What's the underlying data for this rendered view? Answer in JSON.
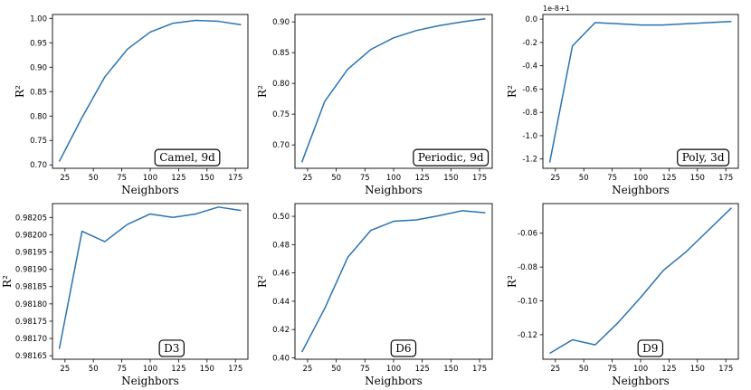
{
  "chart_data": [
    {
      "type": "line",
      "annotation": "Camel, 9d",
      "xlabel": "Neighbors",
      "ylabel": "R²",
      "xlim": [
        14,
        186
      ],
      "ylim": [
        0.693,
        1.008
      ],
      "xticks": [
        25,
        50,
        75,
        100,
        125,
        150,
        175
      ],
      "yticks": [
        0.7,
        0.75,
        0.8,
        0.85,
        0.9,
        0.95,
        1.0
      ],
      "ytick_labels": [
        "0.70",
        "0.75",
        "0.80",
        "0.85",
        "0.90",
        "0.95",
        "1.00"
      ],
      "offset_text": "",
      "x": [
        20,
        40,
        60,
        80,
        100,
        120,
        140,
        160,
        180
      ],
      "y": [
        0.707,
        0.797,
        0.88,
        0.937,
        0.972,
        0.99,
        0.996,
        0.994,
        0.987
      ]
    },
    {
      "type": "line",
      "annotation": "Periodic, 9d",
      "xlabel": "Neighbors",
      "ylabel": "R²",
      "xlim": [
        14,
        186
      ],
      "ylim": [
        0.662,
        0.912
      ],
      "xticks": [
        25,
        50,
        75,
        100,
        125,
        150,
        175
      ],
      "yticks": [
        0.7,
        0.75,
        0.8,
        0.85,
        0.9
      ],
      "ytick_labels": [
        "0.70",
        "0.75",
        "0.80",
        "0.85",
        "0.90"
      ],
      "offset_text": "",
      "x": [
        20,
        40,
        60,
        80,
        100,
        120,
        140,
        160,
        180
      ],
      "y": [
        0.672,
        0.771,
        0.823,
        0.855,
        0.874,
        0.886,
        0.894,
        0.9,
        0.905
      ]
    },
    {
      "type": "line",
      "annotation": "Poly, 3d",
      "xlabel": "Neighbors",
      "ylabel": "R²",
      "xlim": [
        14,
        186
      ],
      "ylim": [
        -1.28,
        0.04
      ],
      "xticks": [
        25,
        50,
        75,
        100,
        125,
        150,
        175
      ],
      "yticks": [
        0.0,
        -0.2,
        -0.4,
        -0.6,
        -0.8,
        -1.0,
        -1.2
      ],
      "ytick_labels": [
        "0.0",
        "-0.2",
        "-0.4",
        "-0.6",
        "-0.8",
        "-1.0",
        "-1.2"
      ],
      "offset_text": "1e-8+1",
      "x": [
        20,
        40,
        60,
        80,
        100,
        120,
        140,
        160,
        180
      ],
      "y": [
        -1.23,
        -0.23,
        -0.03,
        -0.04,
        -0.05,
        -0.05,
        -0.04,
        -0.03,
        -0.02
      ]
    },
    {
      "type": "line",
      "annotation": "D3",
      "xlabel": "Neighbors",
      "ylabel": "R²",
      "xlim": [
        14,
        186
      ],
      "ylim": [
        0.98164,
        0.98209
      ],
      "xticks": [
        25,
        50,
        75,
        100,
        125,
        150,
        175
      ],
      "yticks": [
        0.98165,
        0.9817,
        0.98175,
        0.9818,
        0.98185,
        0.9819,
        0.98195,
        0.982,
        0.98205
      ],
      "ytick_labels": [
        "0.98165",
        "0.98170",
        "0.98175",
        "0.98180",
        "0.98185",
        "0.98190",
        "0.98195",
        "0.98200",
        "0.98205"
      ],
      "offset_text": "",
      "x": [
        20,
        40,
        60,
        80,
        100,
        120,
        140,
        160,
        180
      ],
      "y": [
        0.98167,
        0.98201,
        0.98198,
        0.98203,
        0.98206,
        0.98205,
        0.98206,
        0.98208,
        0.98207
      ]
    },
    {
      "type": "line",
      "annotation": "D6",
      "xlabel": "Neighbors",
      "ylabel": "R²",
      "xlim": [
        14,
        186
      ],
      "ylim": [
        0.399,
        0.509
      ],
      "xticks": [
        25,
        50,
        75,
        100,
        125,
        150,
        175
      ],
      "yticks": [
        0.4,
        0.42,
        0.44,
        0.46,
        0.48,
        0.5
      ],
      "ytick_labels": [
        "0.40",
        "0.42",
        "0.44",
        "0.46",
        "0.48",
        "0.50"
      ],
      "offset_text": "",
      "x": [
        20,
        40,
        60,
        80,
        100,
        120,
        140,
        160,
        180
      ],
      "y": [
        0.404,
        0.435,
        0.471,
        0.49,
        0.4965,
        0.4975,
        0.5005,
        0.504,
        0.5025
      ]
    },
    {
      "type": "line",
      "annotation": "D9",
      "xlabel": "Neighbors",
      "ylabel": "R²",
      "xlim": [
        14,
        186
      ],
      "ylim": [
        -0.1345,
        -0.0425
      ],
      "xticks": [
        25,
        50,
        75,
        100,
        125,
        150,
        175
      ],
      "yticks": [
        -0.06,
        -0.08,
        -0.1,
        -0.12
      ],
      "ytick_labels": [
        "-0.06",
        "-0.08",
        "-0.10",
        "-0.12"
      ],
      "offset_text": "",
      "x": [
        20,
        40,
        60,
        80,
        100,
        120,
        140,
        160,
        180
      ],
      "y": [
        -0.131,
        -0.123,
        -0.126,
        -0.113,
        -0.098,
        -0.082,
        -0.071,
        -0.058,
        -0.045
      ]
    }
  ],
  "colors": {
    "line": "#2a73b0",
    "axes": "#000000",
    "background": "#ffffff"
  }
}
